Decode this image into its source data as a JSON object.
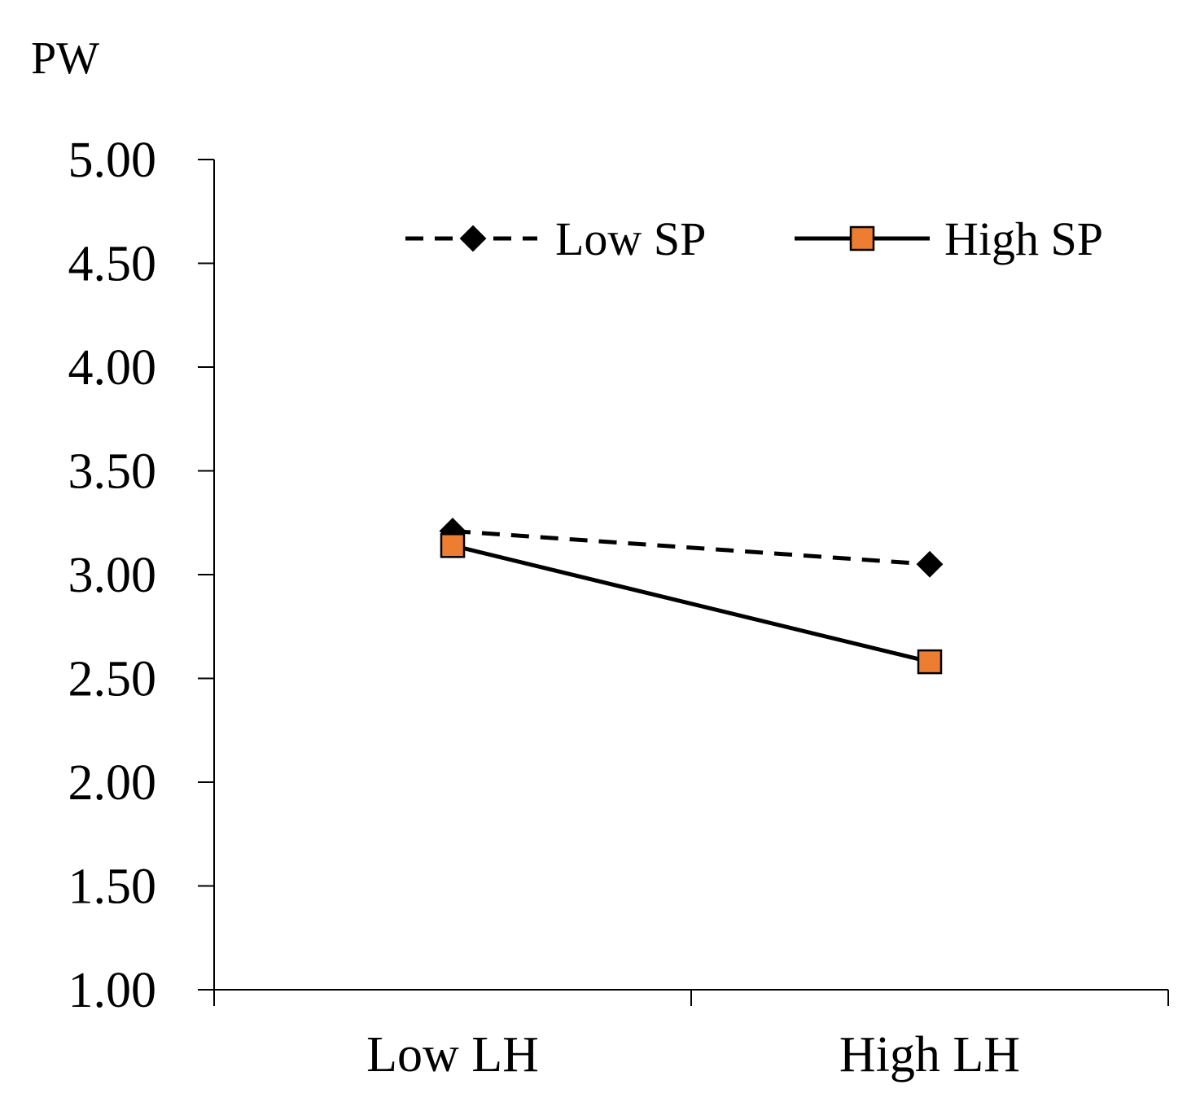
{
  "chart_data": {
    "type": "line",
    "title": "",
    "xlabel": "",
    "ylabel": "PW",
    "categories": [
      "Low LH",
      "High LH"
    ],
    "ylim": [
      1.0,
      5.0
    ],
    "yticks": [
      1.0,
      1.5,
      2.0,
      2.5,
      3.0,
      3.5,
      4.0,
      4.5,
      5.0
    ],
    "ytick_labels": [
      "1.00",
      "1.50",
      "2.00",
      "2.50",
      "3.00",
      "3.50",
      "4.00",
      "4.50",
      "5.00"
    ],
    "grid": false,
    "legend_position": "top-right",
    "series": [
      {
        "name": "Low SP",
        "values": [
          3.21,
          3.05
        ],
        "line_style": "dashed",
        "marker": "diamond",
        "color": "#000000",
        "marker_fill": "#000000"
      },
      {
        "name": "High SP",
        "values": [
          3.14,
          2.58
        ],
        "line_style": "solid",
        "marker": "square",
        "color": "#000000",
        "marker_fill": "#ED7D31"
      }
    ]
  }
}
